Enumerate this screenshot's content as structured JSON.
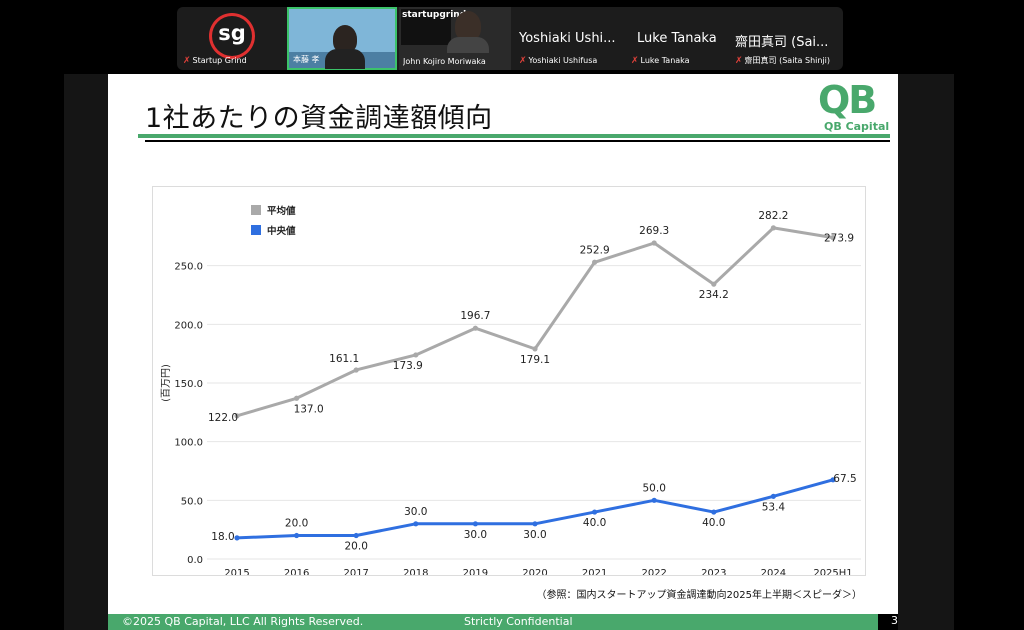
{
  "participants": [
    {
      "logo_text": "sg",
      "name": "Startup Grind"
    },
    {
      "name": "本藤 孝"
    },
    {
      "name": "John Kojiro Moriwaka",
      "screen_brand": "startupgrind"
    },
    {
      "title": "Yoshiaki Ushi...",
      "name": "Yoshiaki Ushifusa"
    },
    {
      "title": "Luke Tanaka",
      "name": "Luke Tanaka"
    },
    {
      "title": "齋田真司 (Sai...",
      "name": "齋田真司 (Saita Shinji)"
    }
  ],
  "slide": {
    "title": "1社あたりの資金調達額傾向",
    "logo": {
      "mark": "QB",
      "caption": "QB Capital"
    },
    "source": "（参照：国内スタートアップ資金調達動向2025年上半期＜スピーダ＞）",
    "footer": {
      "copyright": "©2025  QB Capital, LLC  All Rights Reserved.",
      "confidential": "Strictly Confidential"
    },
    "page_number": "3"
  },
  "colors": {
    "accent": "#49a86c",
    "avg_series": "#a9a9a9",
    "median_series": "#2f6fe0"
  },
  "chart_data": {
    "type": "line",
    "categories": [
      "2015",
      "2016",
      "2017",
      "2018",
      "2019",
      "2020",
      "2021",
      "2022",
      "2023",
      "2024",
      "2025H1"
    ],
    "series": [
      {
        "name": "平均値",
        "values": [
          122.0,
          137.0,
          161.1,
          173.9,
          196.7,
          179.1,
          252.9,
          269.3,
          234.2,
          282.2,
          273.9
        ],
        "labels": [
          "122.0",
          "137.0",
          "161.1",
          "173.9",
          "196.7",
          "179.1",
          "252.9",
          "269.3",
          "234.2",
          "282.2",
          "273.9"
        ]
      },
      {
        "name": "中央値",
        "values": [
          18.0,
          20.0,
          20.0,
          30.0,
          30.0,
          30.0,
          40.0,
          50.0,
          40.0,
          53.4,
          67.5
        ],
        "labels": [
          "18.0",
          "20.0",
          "20.0",
          "30.0",
          "30.0",
          "30.0",
          "40.0",
          "50.0",
          "40.0",
          "53.4",
          "67.5"
        ]
      }
    ],
    "yticks": [
      "0.0",
      "50.0",
      "100.0",
      "150.0",
      "200.0",
      "250.0"
    ],
    "ylabel": "(百万円)",
    "ylim": [
      0,
      300
    ],
    "legend_position": "top-left",
    "grid": true
  }
}
